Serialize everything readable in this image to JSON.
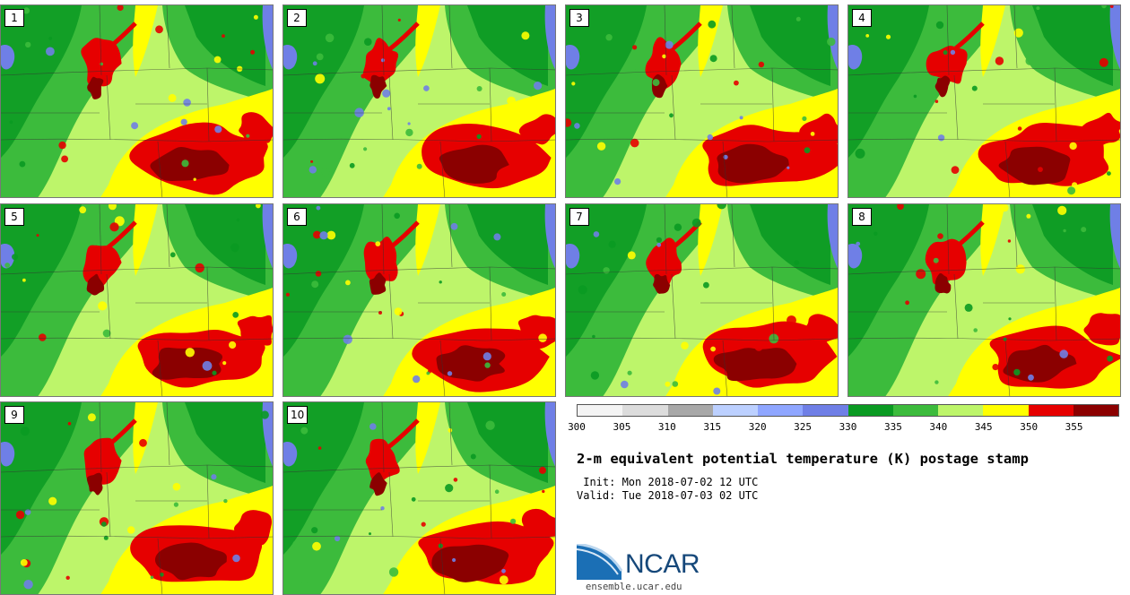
{
  "colors": {
    "background": "#9be37a",
    "blue": "#6f7fe6",
    "dark_green": "#0a9a22",
    "green": "#3cbb3c",
    "light_green": "#bdf56a",
    "yellow": "#ffff00",
    "red": "#e60000",
    "dark_red": "#8b0000",
    "border_lines": "#333333"
  },
  "panels": [
    {
      "number": "1"
    },
    {
      "number": "2"
    },
    {
      "number": "3"
    },
    {
      "number": "4"
    },
    {
      "number": "5"
    },
    {
      "number": "6"
    },
    {
      "number": "7"
    },
    {
      "number": "8"
    },
    {
      "number": "9"
    },
    {
      "number": "10"
    }
  ],
  "legend": {
    "tick_labels": [
      "300",
      "305",
      "310",
      "315",
      "320",
      "325",
      "330",
      "335",
      "340",
      "345",
      "350",
      "355"
    ],
    "colors": [
      "#f4f4f4",
      "#dcdcdc",
      "#a8a8a8",
      "#bcd0ff",
      "#8fa6ff",
      "#6f7fe6",
      "#0a9a22",
      "#3cbb3c",
      "#bdf56a",
      "#ffff00",
      "#e60000",
      "#8b0000"
    ]
  },
  "title": "2-m equivalent potential temperature (K) postage stamp",
  "init_text": " Init: Mon 2018-07-02 12 UTC",
  "valid_text": "Valid: Tue 2018-07-03 02 UTC",
  "logo": {
    "wordmark": "NCAR",
    "site": "ensemble.ucar.edu"
  }
}
